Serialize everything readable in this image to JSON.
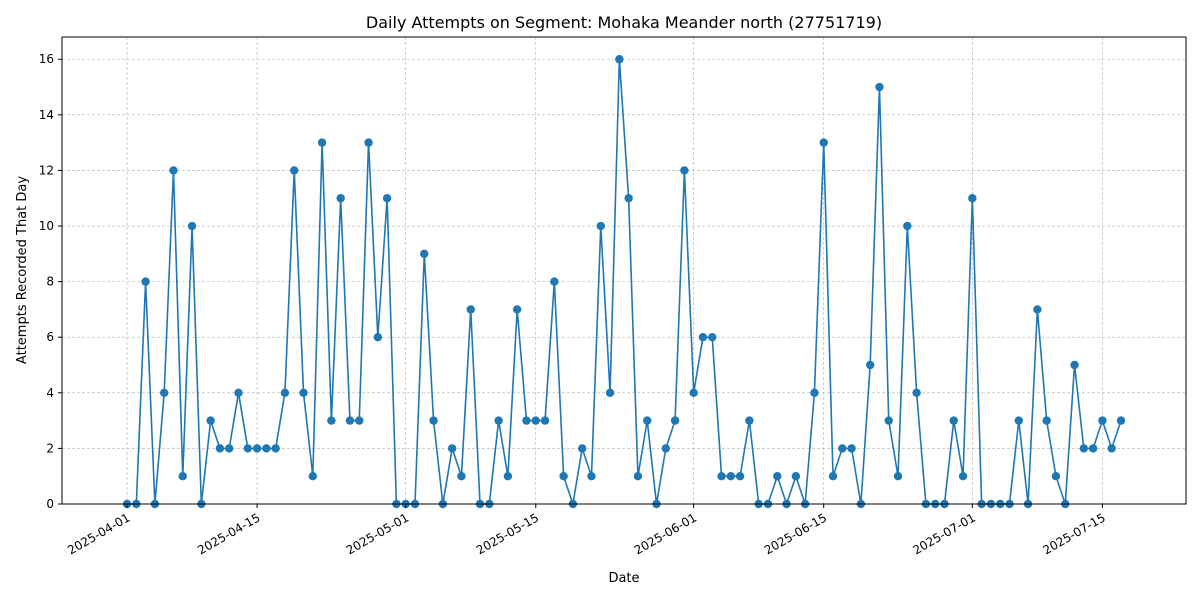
{
  "chart_data": {
    "type": "line",
    "title": "Daily Attempts on Segment: Mohaka Meander north (27751719)",
    "xlabel": "Date",
    "ylabel": "Attempts Recorded That Day",
    "x_start": "2025-04-01",
    "x_end": "2025-07-17",
    "xlim": [
      "2025-03-25",
      "2025-07-24"
    ],
    "ylim": [
      0,
      16.8
    ],
    "x_tick_labels": [
      "2025-04-01",
      "2025-04-15",
      "2025-05-01",
      "2025-05-15",
      "2025-06-01",
      "2025-06-15",
      "2025-07-01",
      "2025-07-15"
    ],
    "y_ticks": [
      0,
      2,
      4,
      6,
      8,
      10,
      12,
      14,
      16
    ],
    "grid": true,
    "marker": "circle",
    "line_color": "#1f77b4",
    "series": [
      {
        "values": [
          0,
          0,
          8,
          0,
          4,
          12,
          1,
          10,
          0,
          3,
          2,
          2,
          4,
          2,
          2,
          2,
          2,
          4,
          12,
          4,
          1,
          13,
          3,
          11,
          3,
          3,
          13,
          6,
          11,
          0,
          0,
          0,
          9,
          3,
          0,
          2,
          1,
          7,
          0,
          0,
          3,
          1,
          7,
          3,
          3,
          3,
          8,
          1,
          0,
          2,
          1,
          10,
          4,
          16,
          11,
          1,
          3,
          0,
          2,
          3,
          12,
          4,
          6,
          6,
          1,
          1,
          1,
          3,
          0,
          0,
          1,
          0,
          1,
          0,
          4,
          13,
          1,
          2,
          2,
          0,
          5,
          15,
          3,
          1,
          10,
          4,
          0,
          0,
          0,
          3,
          1,
          11,
          0,
          0,
          0,
          0,
          3,
          0,
          7,
          3,
          1,
          0,
          5,
          2,
          2,
          3,
          2,
          3
        ]
      }
    ]
  }
}
